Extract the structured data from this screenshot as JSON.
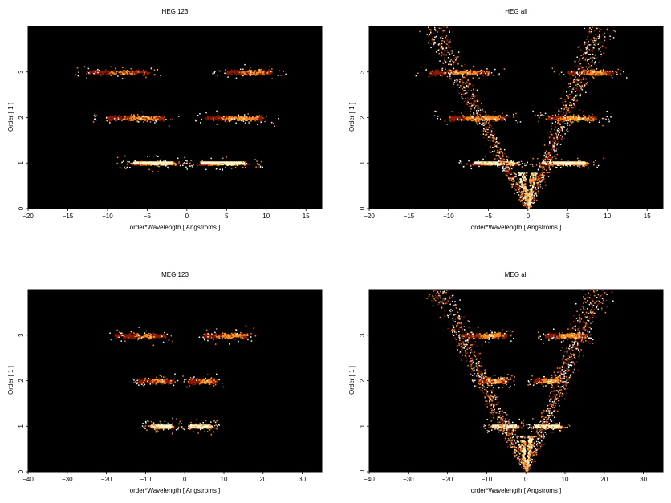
{
  "chart_data": [
    {
      "type": "heatmap",
      "title": "HEG 123",
      "xlabel": "order*Wavelength [ Angstroms ]",
      "ylabel": "Order [ 1 ]",
      "xlim": [
        -20,
        17
      ],
      "ylim": [
        0,
        4
      ],
      "xticks": [
        -20,
        -15,
        -10,
        -5,
        0,
        5,
        10,
        15
      ],
      "yticks": [
        0,
        1,
        2,
        3
      ],
      "grid": false,
      "legend": "none",
      "colors": {
        "background": "#000000",
        "low": "#8b1a00",
        "mid": "#ff8c1a",
        "high": "#fff2c0"
      },
      "bands": [
        {
          "y": 1,
          "x_min": -7,
          "x_max": -1.5,
          "strength": 1.0
        },
        {
          "y": 1,
          "x_min": 1.5,
          "x_max": 7.5,
          "strength": 0.95
        },
        {
          "y": 2,
          "x_min": -10,
          "x_max": -3,
          "strength": 0.7
        },
        {
          "y": 2,
          "x_min": 2.5,
          "x_max": 9.5,
          "strength": 0.75
        },
        {
          "y": 3,
          "x_min": -12.5,
          "x_max": -5,
          "strength": 0.6
        },
        {
          "y": 3,
          "x_min": 5,
          "x_max": 10.5,
          "strength": 0.65
        }
      ],
      "fans": []
    },
    {
      "type": "heatmap",
      "title": "HEG all",
      "xlabel": "order*Wavelength [ Angstroms ]",
      "ylabel": "Order [ 1 ]",
      "xlim": [
        -20,
        17
      ],
      "ylim": [
        0,
        4
      ],
      "xticks": [
        -20,
        -15,
        -10,
        -5,
        0,
        5,
        10,
        15
      ],
      "yticks": [
        0,
        1,
        2,
        3
      ],
      "grid": false,
      "legend": "none",
      "colors": {
        "background": "#000000",
        "low": "#8b1a00",
        "mid": "#ff8c1a",
        "high": "#fff2c0"
      },
      "bands": [
        {
          "y": 1,
          "x_min": -7,
          "x_max": -1.5,
          "strength": 1.0
        },
        {
          "y": 1,
          "x_min": 1.5,
          "x_max": 7.5,
          "strength": 0.95
        },
        {
          "y": 2,
          "x_min": -10,
          "x_max": -3,
          "strength": 0.8
        },
        {
          "y": 2,
          "x_min": 2.5,
          "x_max": 8.5,
          "strength": 0.8
        },
        {
          "y": 3,
          "x_min": -12.5,
          "x_max": -5,
          "strength": 0.7
        },
        {
          "y": 3,
          "x_min": 5,
          "x_max": 10.5,
          "strength": 0.7
        }
      ],
      "fans": [
        {
          "side": -1,
          "x_at_top": -12,
          "width": 2.5
        },
        {
          "side": 1,
          "x_at_top": 9,
          "width": 2.5
        }
      ]
    },
    {
      "type": "heatmap",
      "title": "MEG 123",
      "xlabel": "order*Wavelength [ Angstroms ]",
      "ylabel": "Order [ 1 ]",
      "xlim": [
        -40,
        35
      ],
      "ylim": [
        0,
        4
      ],
      "xticks": [
        -40,
        -30,
        -20,
        -10,
        0,
        10,
        20,
        30
      ],
      "yticks": [
        0,
        1,
        2,
        3
      ],
      "grid": false,
      "legend": "none",
      "colors": {
        "background": "#000000",
        "low": "#8b1a00",
        "mid": "#ff8c1a",
        "high": "#fff2c0"
      },
      "bands": [
        {
          "y": 1,
          "x_min": -9,
          "x_max": -3,
          "strength": 1.0
        },
        {
          "y": 1,
          "x_min": 1,
          "x_max": 7,
          "strength": 0.95
        },
        {
          "y": 2,
          "x_min": -12,
          "x_max": -3,
          "strength": 0.6
        },
        {
          "y": 2,
          "x_min": 1,
          "x_max": 8,
          "strength": 0.65
        },
        {
          "y": 3,
          "x_min": -18,
          "x_max": -5,
          "strength": 0.6
        },
        {
          "y": 3,
          "x_min": 5,
          "x_max": 16,
          "strength": 0.7
        }
      ],
      "fans": []
    },
    {
      "type": "heatmap",
      "title": "MEG all",
      "xlabel": "order*Wavelength [ Angstroms ]",
      "ylabel": "Order [ 1 ]",
      "xlim": [
        -40,
        35
      ],
      "ylim": [
        0,
        4
      ],
      "xticks": [
        -40,
        -30,
        -20,
        -10,
        0,
        10,
        20,
        30
      ],
      "yticks": [
        0,
        1,
        2,
        3
      ],
      "grid": false,
      "legend": "none",
      "colors": {
        "background": "#000000",
        "low": "#8b1a00",
        "mid": "#ff8c1a",
        "high": "#fff2c0"
      },
      "bands": [
        {
          "y": 1,
          "x_min": -9,
          "x_max": -2,
          "strength": 1.0
        },
        {
          "y": 1,
          "x_min": 2,
          "x_max": 9,
          "strength": 0.95
        },
        {
          "y": 2,
          "x_min": -12,
          "x_max": -5,
          "strength": 0.8
        },
        {
          "y": 2,
          "x_min": 2,
          "x_max": 9,
          "strength": 0.8
        },
        {
          "y": 3,
          "x_min": -16,
          "x_max": -5,
          "strength": 0.75
        },
        {
          "y": 3,
          "x_min": 5,
          "x_max": 15,
          "strength": 0.75
        }
      ],
      "fans": [
        {
          "side": -1,
          "x_at_top": -22,
          "width": 5
        },
        {
          "side": 1,
          "x_at_top": 18,
          "width": 5
        }
      ]
    }
  ]
}
